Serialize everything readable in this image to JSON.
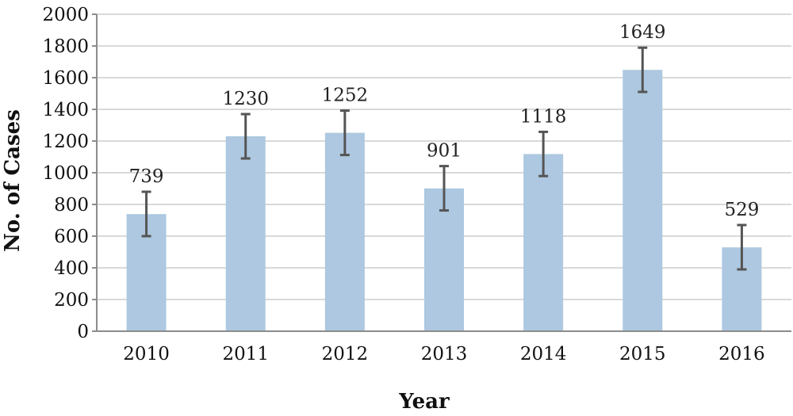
{
  "chart_data": {
    "type": "bar",
    "categories": [
      "2010",
      "2011",
      "2012",
      "2013",
      "2014",
      "2015",
      "2016"
    ],
    "values": [
      739,
      1230,
      1252,
      901,
      1118,
      1649,
      529
    ],
    "data_labels": [
      "739",
      "1230",
      "1252",
      "901",
      "1118",
      "1649",
      "529"
    ],
    "error_bars": {
      "lower": [
        600,
        1090,
        1112,
        762,
        979,
        1510,
        390
      ],
      "upper": [
        880,
        1370,
        1392,
        1042,
        1258,
        1789,
        670
      ]
    },
    "xlabel": "Year",
    "ylabel": "No. of Cases",
    "ylim": [
      0,
      2000
    ],
    "yticks": [
      0,
      200,
      400,
      600,
      800,
      1000,
      1200,
      1400,
      1600,
      1800,
      2000
    ],
    "ytick_labels": [
      "0",
      "200",
      "400",
      "600",
      "800",
      "1000",
      "1200",
      "1400",
      "1600",
      "1800",
      "2000"
    ],
    "grid": true,
    "legend": "none",
    "colors": {
      "bar": "#adc8e0",
      "error_bar": "#555555",
      "grid": "#d9d9d9"
    }
  }
}
